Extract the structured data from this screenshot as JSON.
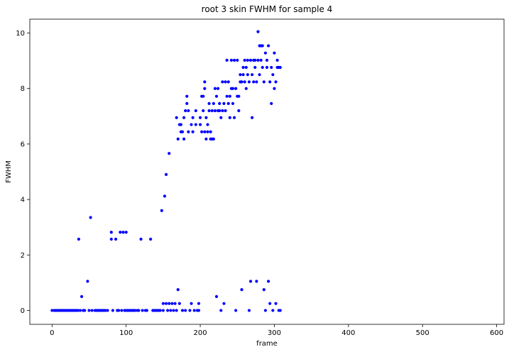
{
  "chart_data": {
    "type": "scatter",
    "title": "root 3 skin FWHM for sample 4",
    "xlabel": "frame",
    "ylabel": "FWHM",
    "xlim": [
      -30,
      610
    ],
    "ylim": [
      -0.5,
      10.5
    ],
    "xticks": [
      0,
      100,
      200,
      300,
      400,
      500,
      600
    ],
    "yticks": [
      0,
      2,
      4,
      6,
      8,
      10
    ],
    "grid": false,
    "marker_color": "#0000ff",
    "series": [
      {
        "points": [
          [
            0,
            0
          ],
          [
            3,
            0
          ],
          [
            5,
            0
          ],
          [
            7,
            0
          ],
          [
            9,
            0
          ],
          [
            11,
            0
          ],
          [
            13,
            0
          ],
          [
            15,
            0
          ],
          [
            17,
            0
          ],
          [
            19,
            0
          ],
          [
            21,
            0
          ],
          [
            23,
            0
          ],
          [
            25,
            0
          ],
          [
            27,
            0
          ],
          [
            29,
            0
          ],
          [
            31,
            0
          ],
          [
            33,
            0
          ],
          [
            35,
            0
          ],
          [
            36,
            2.57
          ],
          [
            38,
            0
          ],
          [
            40,
            0.5
          ],
          [
            42,
            0
          ],
          [
            44,
            0
          ],
          [
            48,
            1.05
          ],
          [
            50,
            0
          ],
          [
            52,
            3.35
          ],
          [
            54,
            0
          ],
          [
            58,
            0
          ],
          [
            60,
            0
          ],
          [
            62,
            0
          ],
          [
            64,
            0
          ],
          [
            66,
            0
          ],
          [
            68,
            0
          ],
          [
            70,
            0
          ],
          [
            72,
            0
          ],
          [
            75,
            0
          ],
          [
            80,
            2.57
          ],
          [
            80,
            2.82
          ],
          [
            82,
            0
          ],
          [
            86,
            2.57
          ],
          [
            88,
            0
          ],
          [
            90,
            0
          ],
          [
            92,
            2.82
          ],
          [
            94,
            0
          ],
          [
            96,
            2.82
          ],
          [
            98,
            0
          ],
          [
            100,
            2.82
          ],
          [
            100,
            0
          ],
          [
            102,
            0
          ],
          [
            104,
            0
          ],
          [
            106,
            0
          ],
          [
            108,
            0
          ],
          [
            110,
            0
          ],
          [
            112,
            0
          ],
          [
            115,
            0
          ],
          [
            117,
            0
          ],
          [
            120,
            2.57
          ],
          [
            122,
            0
          ],
          [
            126,
            0
          ],
          [
            128,
            0
          ],
          [
            133,
            2.57
          ],
          [
            136,
            0
          ],
          [
            138,
            0
          ],
          [
            140,
            0
          ],
          [
            142,
            0
          ],
          [
            144,
            0
          ],
          [
            146,
            0
          ],
          [
            148,
            3.6
          ],
          [
            150,
            0.25
          ],
          [
            150,
            0
          ],
          [
            152,
            4.12
          ],
          [
            154,
            0.25
          ],
          [
            154,
            4.9
          ],
          [
            156,
            0
          ],
          [
            158,
            0.25
          ],
          [
            158,
            5.66
          ],
          [
            160,
            0
          ],
          [
            162,
            0.25
          ],
          [
            164,
            0
          ],
          [
            166,
            0.25
          ],
          [
            168,
            6.95
          ],
          [
            168,
            0
          ],
          [
            170,
            0.75
          ],
          [
            170,
            6.18
          ],
          [
            172,
            6.7
          ],
          [
            172,
            0.25
          ],
          [
            174,
            6.44
          ],
          [
            174,
            6.7
          ],
          [
            176,
            6.44
          ],
          [
            176,
            0
          ],
          [
            178,
            6.18
          ],
          [
            178,
            6.95
          ],
          [
            180,
            7.2
          ],
          [
            180,
            0
          ],
          [
            182,
            7.46
          ],
          [
            182,
            7.72
          ],
          [
            184,
            7.2
          ],
          [
            184,
            6.44
          ],
          [
            186,
            0
          ],
          [
            188,
            0.25
          ],
          [
            188,
            6.7
          ],
          [
            190,
            6.95
          ],
          [
            190,
            6.44
          ],
          [
            192,
            0
          ],
          [
            194,
            7.2
          ],
          [
            194,
            6.7
          ],
          [
            196,
            0
          ],
          [
            198,
            0.25
          ],
          [
            198,
            0
          ],
          [
            200,
            6.7
          ],
          [
            200,
            6.95
          ],
          [
            202,
            7.72
          ],
          [
            202,
            6.44
          ],
          [
            204,
            7.72
          ],
          [
            204,
            7.2
          ],
          [
            206,
            8.0
          ],
          [
            206,
            8.24
          ],
          [
            206,
            6.44
          ],
          [
            208,
            6.95
          ],
          [
            208,
            6.18
          ],
          [
            210,
            6.7
          ],
          [
            210,
            6.44
          ],
          [
            212,
            7.2
          ],
          [
            212,
            7.46
          ],
          [
            214,
            6.18
          ],
          [
            214,
            6.44
          ],
          [
            216,
            6.18
          ],
          [
            216,
            7.2
          ],
          [
            218,
            6.18
          ],
          [
            218,
            7.46
          ],
          [
            220,
            7.2
          ],
          [
            220,
            8.0
          ],
          [
            222,
            7.72
          ],
          [
            222,
            0.5
          ],
          [
            224,
            7.2
          ],
          [
            224,
            8.0
          ],
          [
            226,
            7.46
          ],
          [
            226,
            7.2
          ],
          [
            228,
            6.95
          ],
          [
            228,
            0
          ],
          [
            230,
            7.2
          ],
          [
            230,
            8.24
          ],
          [
            232,
            7.46
          ],
          [
            232,
            0.25
          ],
          [
            234,
            8.24
          ],
          [
            234,
            7.2
          ],
          [
            236,
            7.72
          ],
          [
            236,
            9.02
          ],
          [
            238,
            7.46
          ],
          [
            238,
            8.24
          ],
          [
            240,
            7.72
          ],
          [
            240,
            6.95
          ],
          [
            242,
            8.0
          ],
          [
            242,
            9.02
          ],
          [
            244,
            7.46
          ],
          [
            244,
            8.0
          ],
          [
            246,
            9.02
          ],
          [
            246,
            6.95
          ],
          [
            248,
            0
          ],
          [
            248,
            8.0
          ],
          [
            250,
            7.72
          ],
          [
            250,
            9.02
          ],
          [
            252,
            7.2
          ],
          [
            252,
            7.72
          ],
          [
            254,
            8.24
          ],
          [
            254,
            8.5
          ],
          [
            256,
            0.75
          ],
          [
            256,
            8.24
          ],
          [
            258,
            8.76
          ],
          [
            258,
            8.5
          ],
          [
            260,
            8.24
          ],
          [
            260,
            9.02
          ],
          [
            262,
            8.0
          ],
          [
            262,
            8.76
          ],
          [
            264,
            8.5
          ],
          [
            264,
            9.02
          ],
          [
            266,
            0
          ],
          [
            266,
            8.24
          ],
          [
            268,
            1.05
          ],
          [
            268,
            9.02
          ],
          [
            270,
            8.5
          ],
          [
            270,
            6.95
          ],
          [
            272,
            9.02
          ],
          [
            272,
            8.24
          ],
          [
            274,
            8.76
          ],
          [
            274,
            9.02
          ],
          [
            276,
            1.05
          ],
          [
            276,
            8.24
          ],
          [
            278,
            9.02
          ],
          [
            278,
            10.05
          ],
          [
            280,
            8.5
          ],
          [
            280,
            9.54
          ],
          [
            282,
            9.54
          ],
          [
            282,
            9.02
          ],
          [
            284,
            9.54
          ],
          [
            284,
            8.76
          ],
          [
            286,
            8.24
          ],
          [
            286,
            0.75
          ],
          [
            288,
            0
          ],
          [
            288,
            9.28
          ],
          [
            290,
            8.76
          ],
          [
            290,
            9.02
          ],
          [
            292,
            9.54
          ],
          [
            292,
            1.05
          ],
          [
            294,
            8.24
          ],
          [
            294,
            0.25
          ],
          [
            296,
            8.76
          ],
          [
            296,
            7.46
          ],
          [
            298,
            0
          ],
          [
            298,
            8.5
          ],
          [
            300,
            8.0
          ],
          [
            300,
            9.28
          ],
          [
            302,
            8.24
          ],
          [
            302,
            0.25
          ],
          [
            304,
            8.76
          ],
          [
            304,
            9.02
          ],
          [
            306,
            8.76
          ],
          [
            306,
            0
          ],
          [
            308,
            8.76
          ],
          [
            308,
            0
          ]
        ]
      }
    ]
  }
}
